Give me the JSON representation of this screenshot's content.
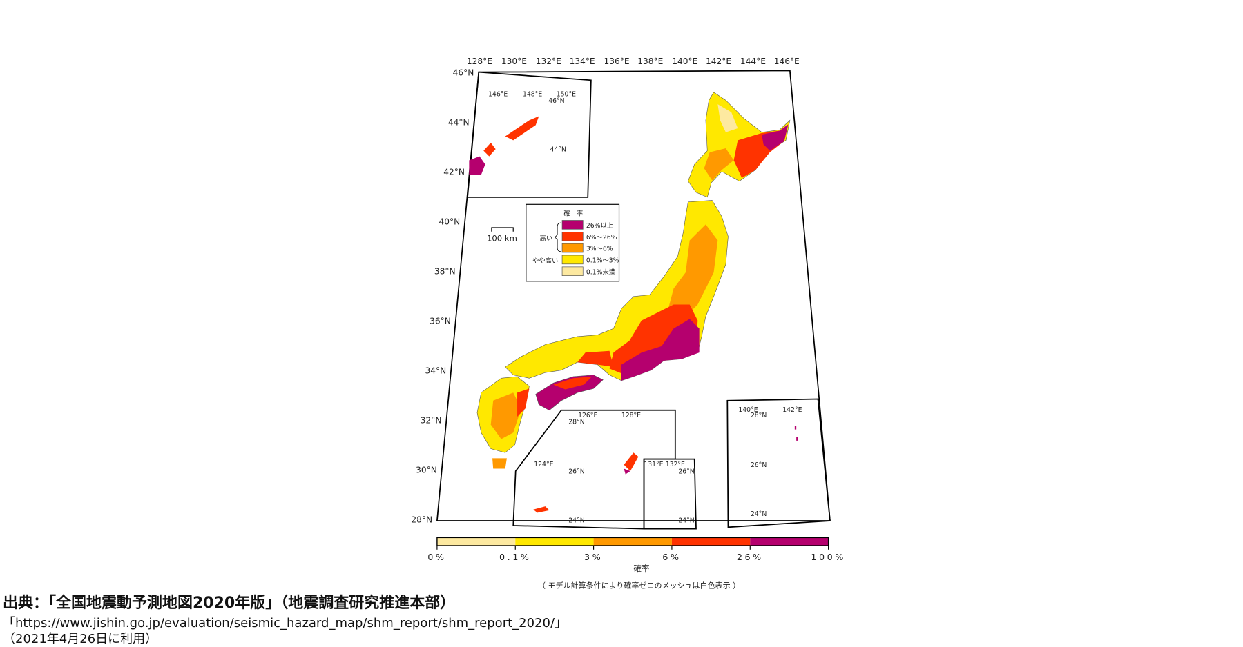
{
  "map": {
    "lon_labels": [
      "128°E",
      "130°E",
      "132°E",
      "134°E",
      "136°E",
      "138°E",
      "140°E",
      "142°E",
      "144°E",
      "146°E"
    ],
    "lat_labels": [
      "46°N",
      "44°N",
      "42°N",
      "40°N",
      "38°N",
      "36°N",
      "34°N",
      "32°N",
      "30°N",
      "28°N"
    ],
    "scale_bar": "100 km",
    "kuril_inset": {
      "lon": [
        "146°E",
        "148°E",
        "150°E"
      ],
      "lat": [
        "46°N",
        "44°N"
      ]
    },
    "ryukyu_inset": {
      "lon": [
        "126°E",
        "128°E",
        "124°E"
      ],
      "lat": [
        "28°N",
        "26°N",
        "24°N"
      ]
    },
    "daito_inset": {
      "lon": [
        "131°E",
        "132°E"
      ],
      "lat": [
        "26°N",
        "24°N"
      ]
    },
    "ogasawara_inset": {
      "lon": [
        "140°E",
        "142°E"
      ],
      "lat": [
        "28°N",
        "26°N",
        "24°N"
      ]
    }
  },
  "legend": {
    "title": "確　率",
    "group_high": "高い",
    "group_somewhat_high": "やや高い",
    "items": [
      {
        "label": "26%以上",
        "color": "#b5006e"
      },
      {
        "label": "6%～26%",
        "color": "#ff3300"
      },
      {
        "label": "3%～6%",
        "color": "#ff9900"
      },
      {
        "label": "0.1%～3%",
        "color": "#ffe800"
      },
      {
        "label": "0.1%未満",
        "color": "#fde9a0"
      }
    ]
  },
  "colorbar": {
    "ticks": [
      "0%",
      "0.1%",
      "3%",
      "6%",
      "26%",
      "100%"
    ],
    "colors": [
      "#fde9a0",
      "#ffe800",
      "#ff9900",
      "#ff3300",
      "#b5006e"
    ],
    "label": "確率",
    "note": "（ モデル計算条件により確率ゼロのメッシュは白色表示 ）"
  },
  "caption": {
    "line1": "出典：「全国地震動予測地図2020年版」（地震調査研究推進本部）",
    "line2": "「https://www.jishin.go.jp/evaluation/seismic_hazard_map/shm_report/shm_report_2020/」",
    "line3": "（2021年4月26日に利用）"
  }
}
